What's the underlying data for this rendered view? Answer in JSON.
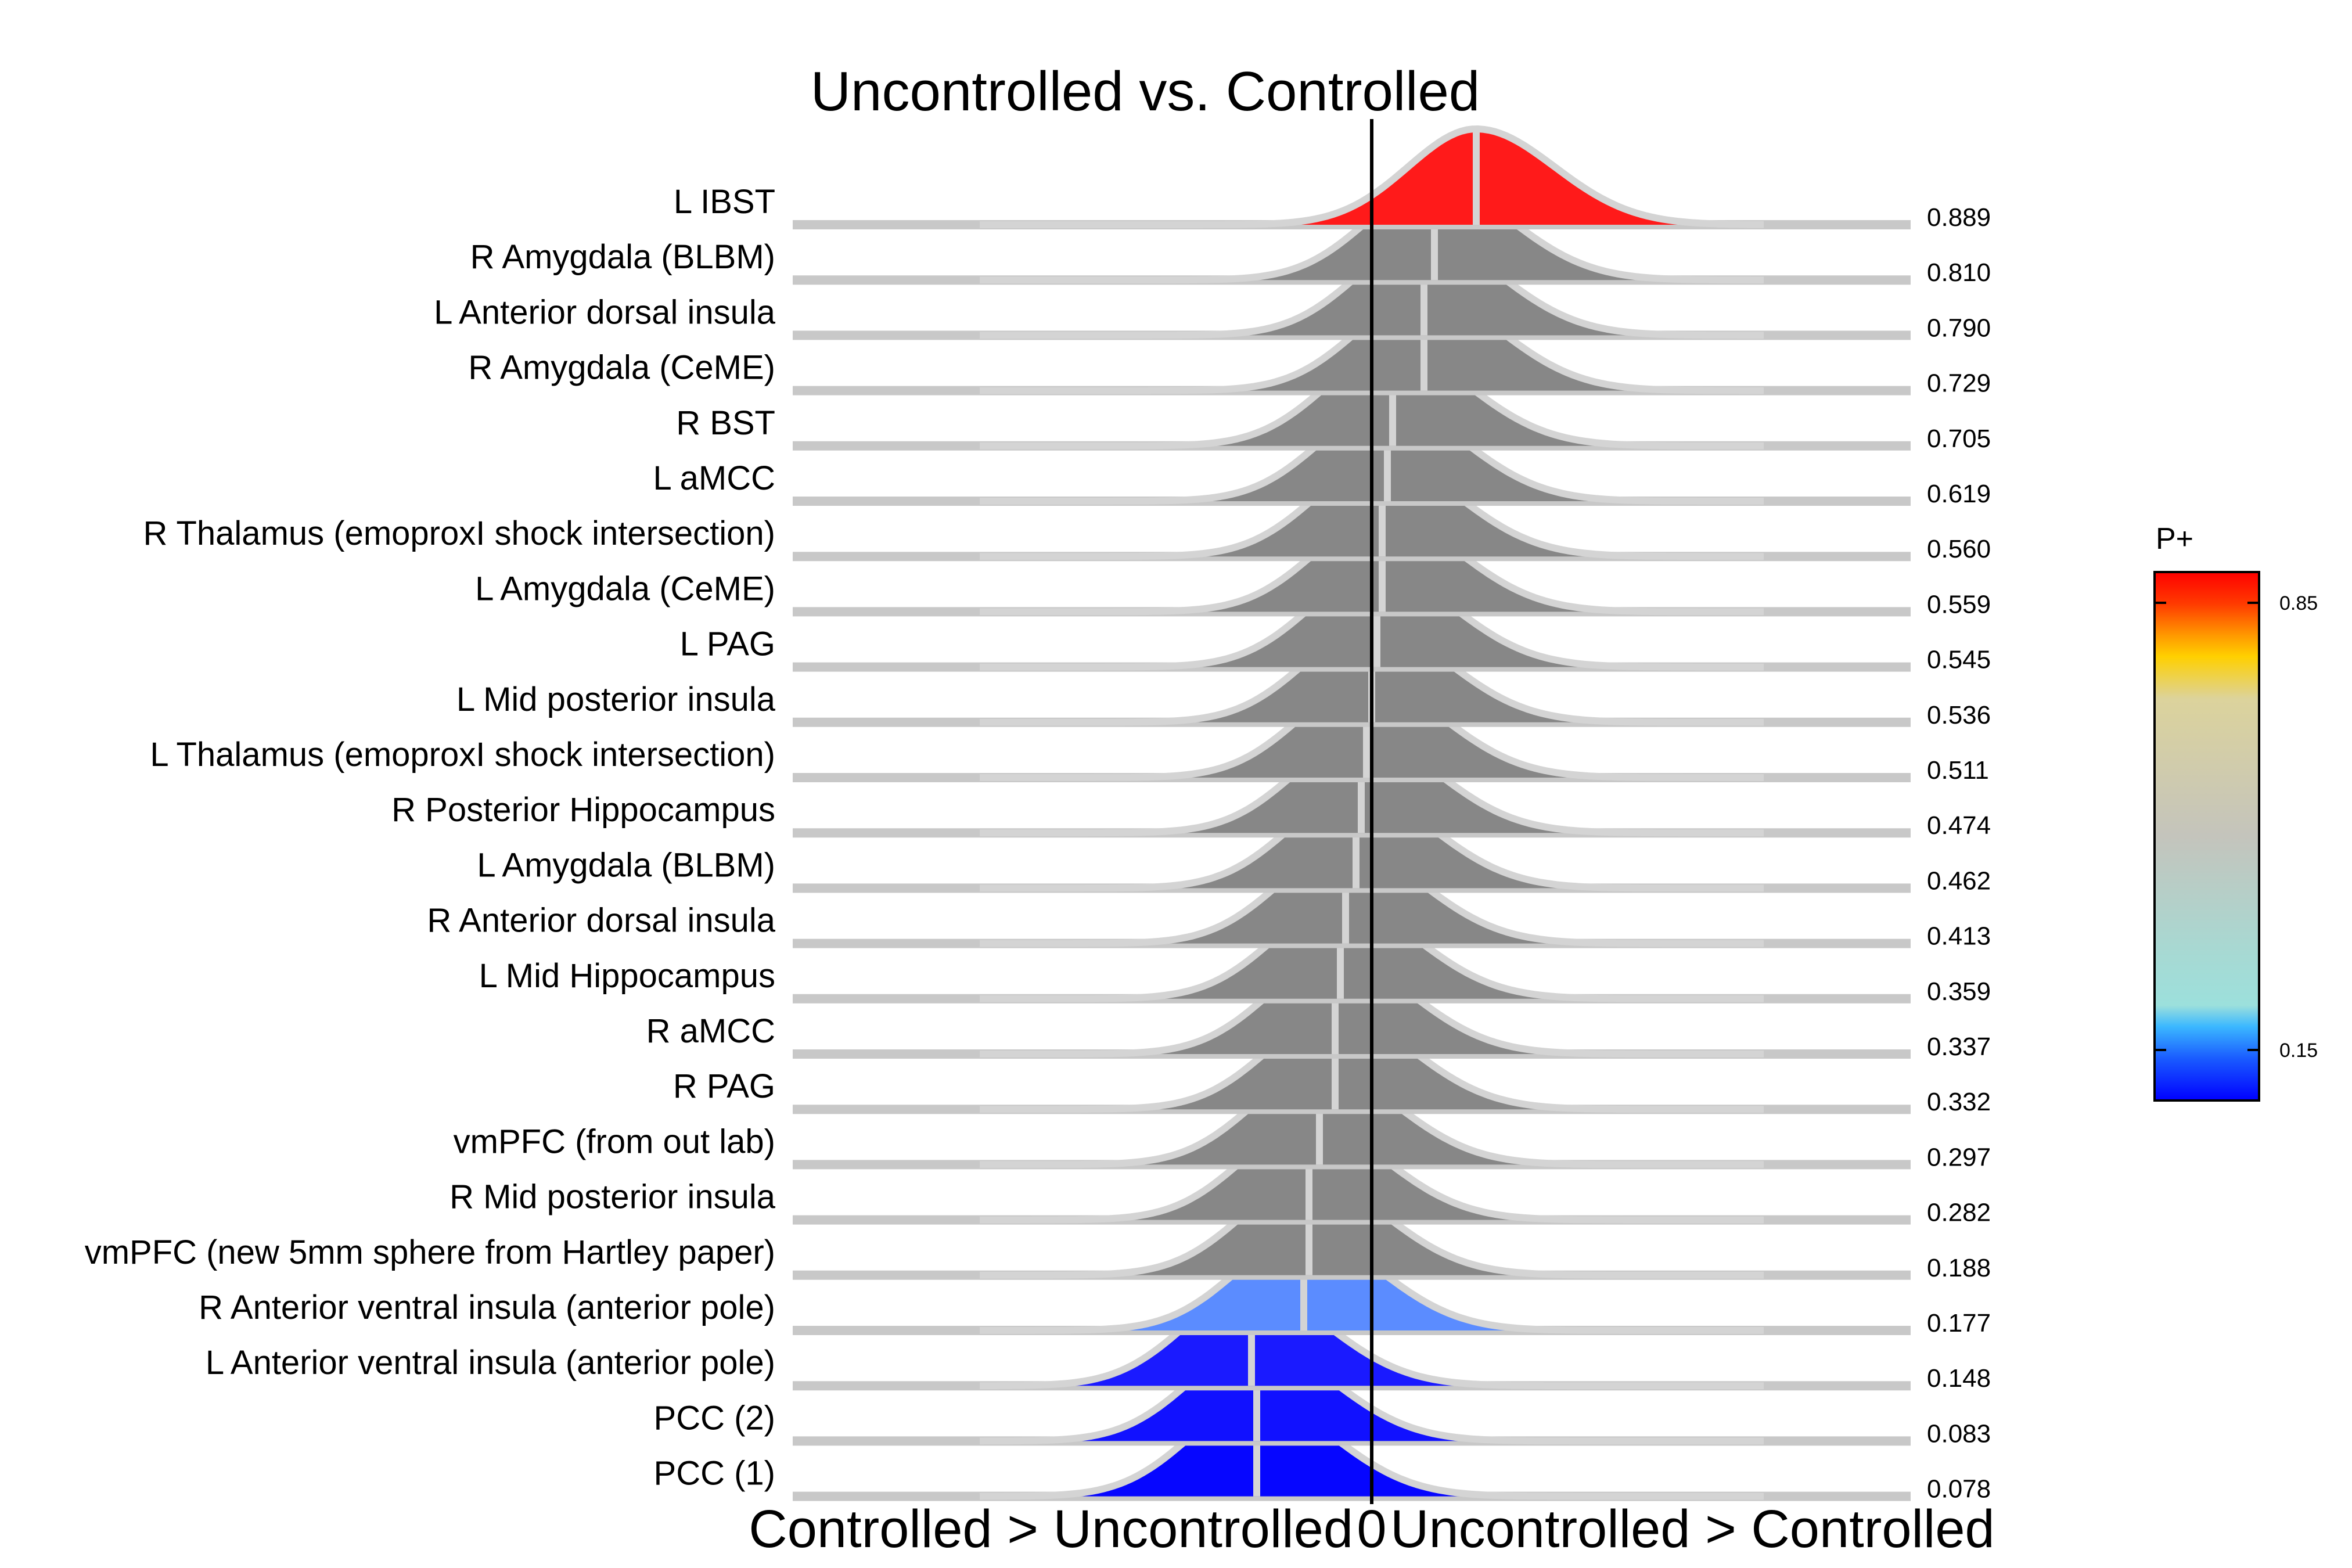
{
  "chart_data": {
    "type": "ridgeline",
    "title": "Uncontrolled vs. Controlled",
    "xlabel_left": "Controlled > Uncontrolled",
    "xlabel_center": "0",
    "xlabel_right": "Uncontrolled > Controlled",
    "reference_line_x": 0,
    "rows": [
      {
        "label": "L IBST",
        "p_plus": 0.889,
        "median": 0.2,
        "fill": "#ff1a1a"
      },
      {
        "label": "R Amygdala (BLBM)",
        "p_plus": 0.81,
        "median": 0.12,
        "fill": "#878787"
      },
      {
        "label": "L Anterior dorsal insula",
        "p_plus": 0.79,
        "median": 0.1,
        "fill": "#878787"
      },
      {
        "label": "R Amygdala (CeME)",
        "p_plus": 0.729,
        "median": 0.1,
        "fill": "#878787"
      },
      {
        "label": "R BST",
        "p_plus": 0.705,
        "median": 0.04,
        "fill": "#878787"
      },
      {
        "label": "L aMCC",
        "p_plus": 0.619,
        "median": 0.03,
        "fill": "#878787"
      },
      {
        "label": "R Thalamus (emoproxI shock intersection)",
        "p_plus": 0.56,
        "median": 0.02,
        "fill": "#878787"
      },
      {
        "label": "L Amygdala (CeME)",
        "p_plus": 0.559,
        "median": 0.02,
        "fill": "#878787"
      },
      {
        "label": "L PAG",
        "p_plus": 0.545,
        "median": 0.01,
        "fill": "#878787"
      },
      {
        "label": "L Mid posterior insula",
        "p_plus": 0.536,
        "median": 0.0,
        "fill": "#878787"
      },
      {
        "label": "L Thalamus (emoproxI shock intersection)",
        "p_plus": 0.511,
        "median": -0.01,
        "fill": "#878787"
      },
      {
        "label": "R Posterior Hippocampus",
        "p_plus": 0.474,
        "median": -0.02,
        "fill": "#878787"
      },
      {
        "label": "L Amygdala (BLBM)",
        "p_plus": 0.462,
        "median": -0.03,
        "fill": "#878787"
      },
      {
        "label": "R Anterior dorsal insula",
        "p_plus": 0.413,
        "median": -0.05,
        "fill": "#878787"
      },
      {
        "label": "L Mid Hippocampus",
        "p_plus": 0.359,
        "median": -0.06,
        "fill": "#878787"
      },
      {
        "label": "R aMCC",
        "p_plus": 0.337,
        "median": -0.07,
        "fill": "#878787"
      },
      {
        "label": "R PAG",
        "p_plus": 0.332,
        "median": -0.07,
        "fill": "#878787"
      },
      {
        "label": "vmPFC (from out lab)",
        "p_plus": 0.297,
        "median": -0.1,
        "fill": "#878787"
      },
      {
        "label": "R Mid posterior insula",
        "p_plus": 0.282,
        "median": -0.12,
        "fill": "#878787"
      },
      {
        "label": "vmPFC (new 5mm sphere from Hartley paper)",
        "p_plus": 0.188,
        "median": -0.12,
        "fill": "#878787"
      },
      {
        "label": "R Anterior ventral insula (anterior pole)",
        "p_plus": 0.177,
        "median": -0.13,
        "fill": "#5b8cff"
      },
      {
        "label": "L Anterior ventral insula (anterior pole)",
        "p_plus": 0.148,
        "median": -0.23,
        "fill": "#1a1aff"
      },
      {
        "label": "PCC (2)",
        "p_plus": 0.083,
        "median": -0.22,
        "fill": "#1111ff"
      },
      {
        "label": "PCC (1)",
        "p_plus": 0.078,
        "median": -0.22,
        "fill": "#0606ff"
      }
    ],
    "colorbar": {
      "title": "P+",
      "ticks": [
        "0.85",
        "0.15"
      ],
      "colors": [
        "#ff0000",
        "#ff8c00",
        "#ffd400",
        "#d8d29a",
        "#c2c2b4",
        "#b8c6c4",
        "#9fdcd8",
        "#33bbff",
        "#0000ff"
      ]
    }
  }
}
